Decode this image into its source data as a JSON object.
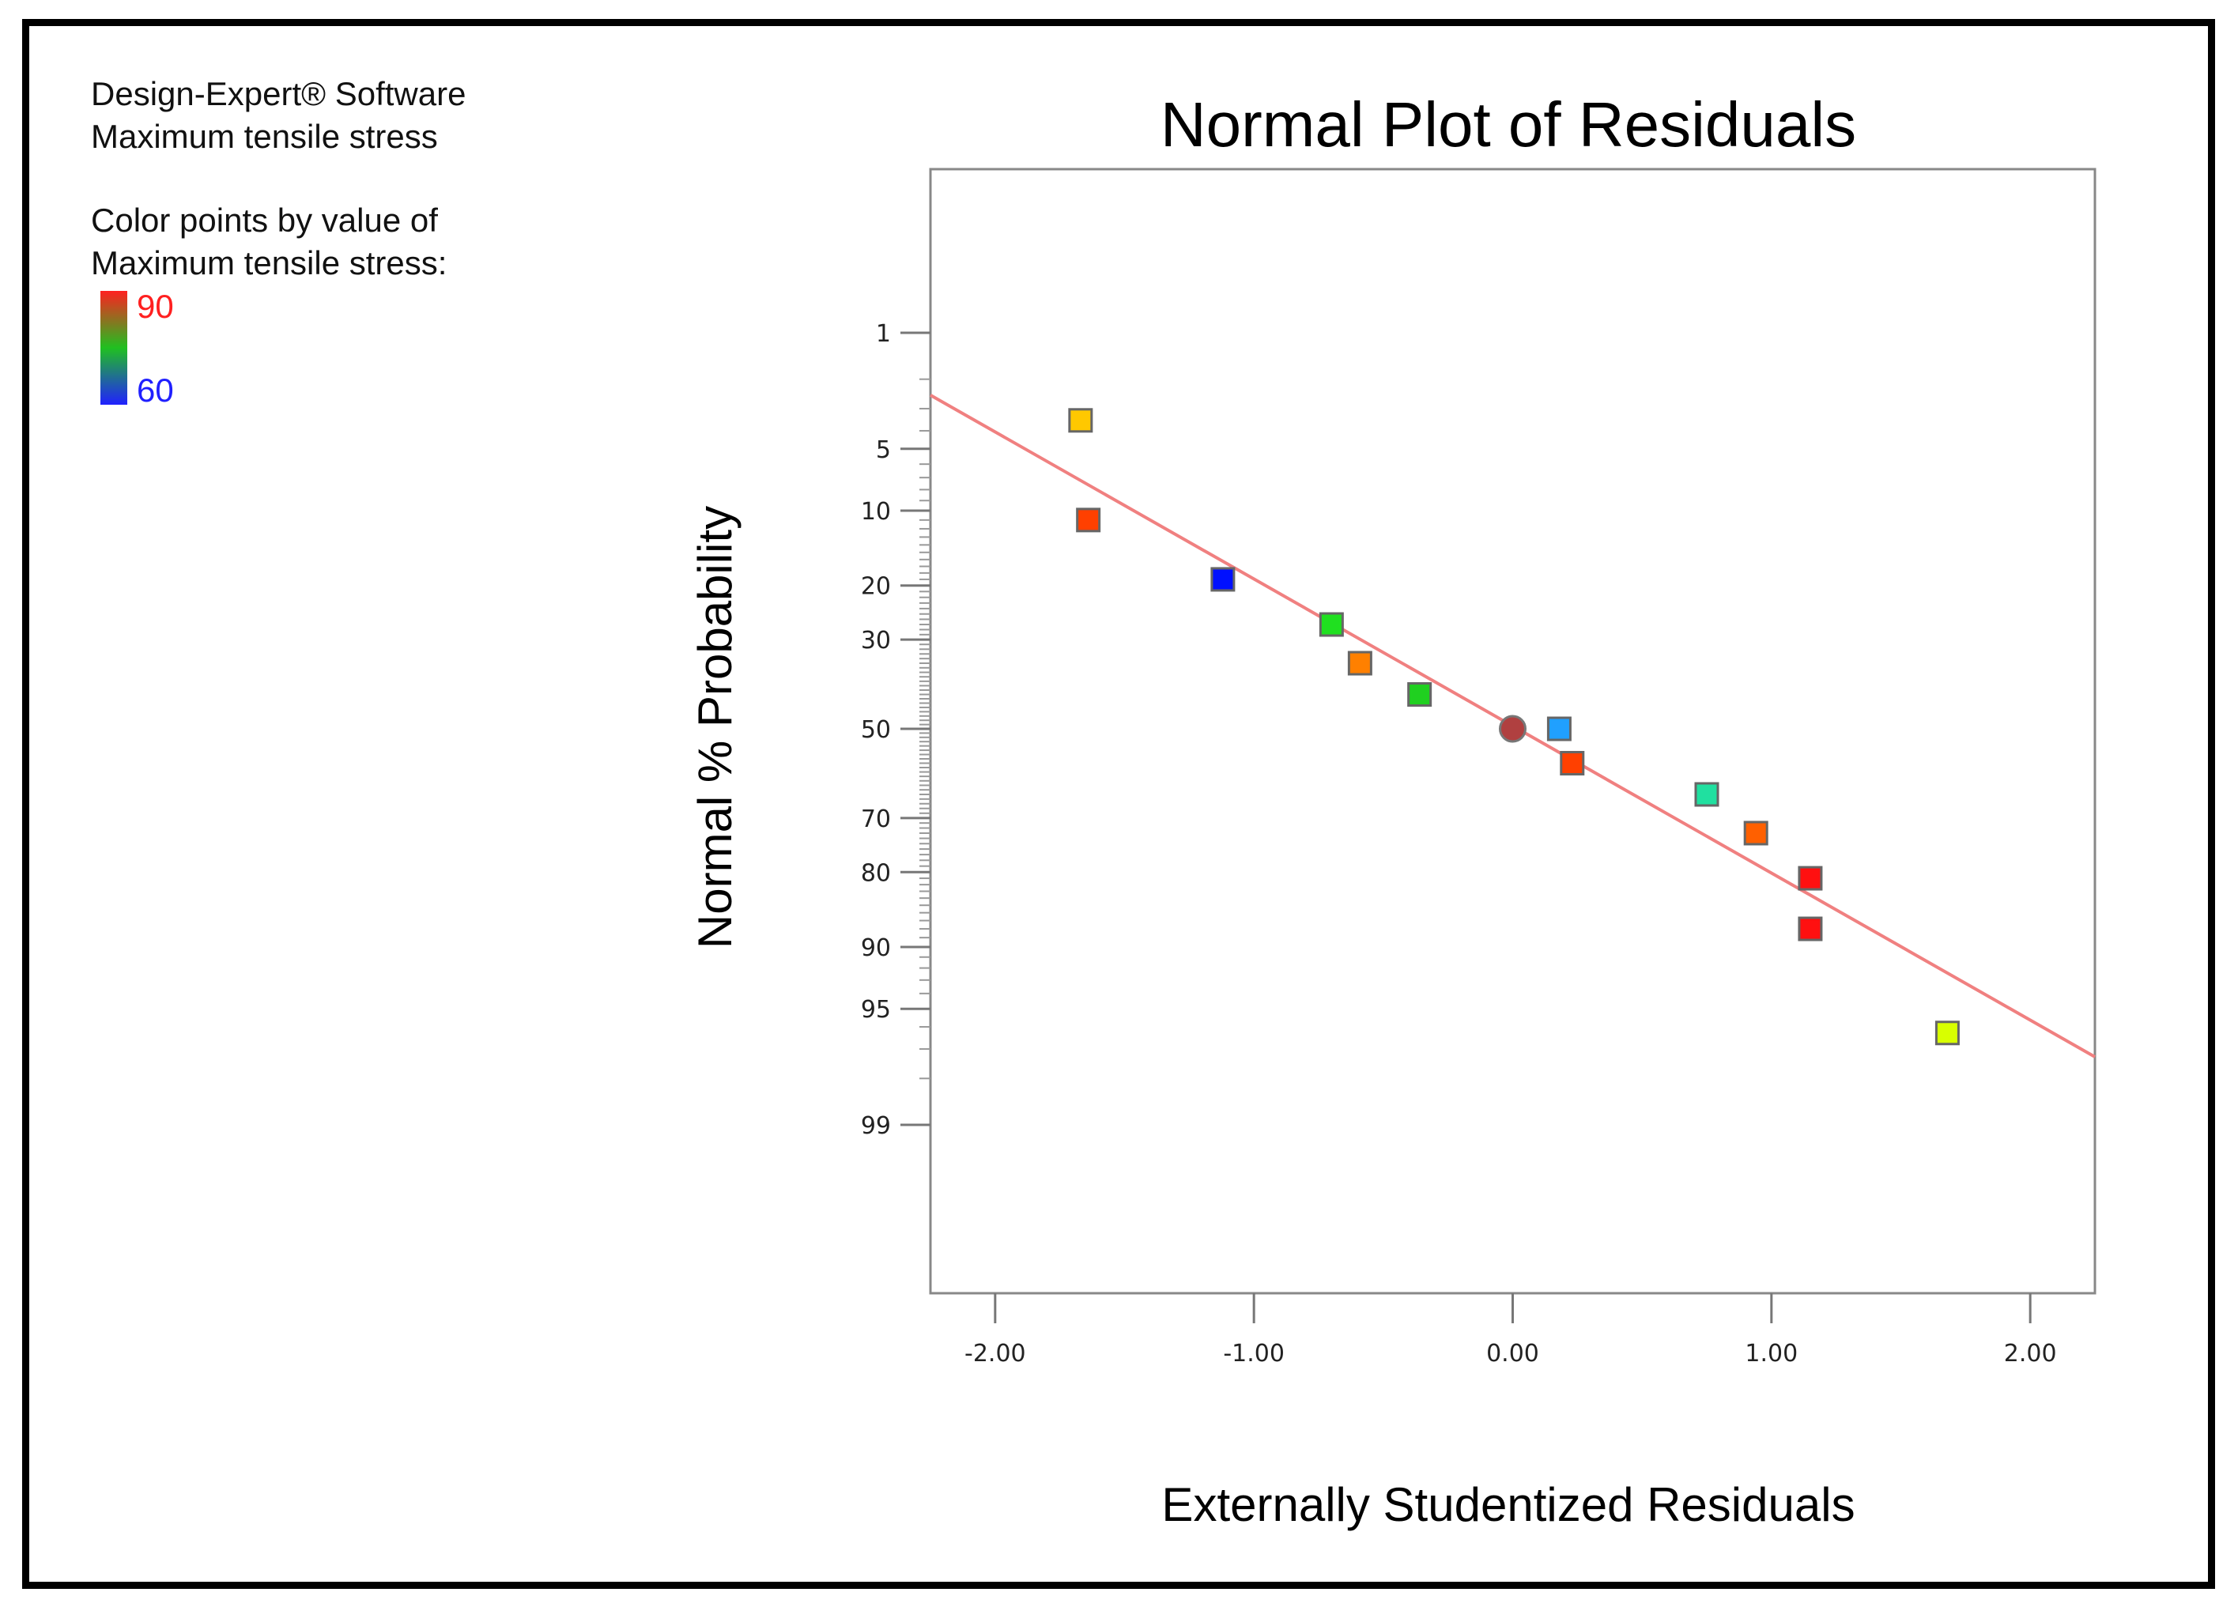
{
  "software": {
    "title": "Design-Expert® Software",
    "response": "Maximum tensile stress"
  },
  "legend": {
    "caption_line1": "Color points by value of",
    "caption_line2": "Maximum tensile stress:",
    "max_label": "90",
    "min_label": "60",
    "max_color": "#ff2020",
    "mid_color": "#20c020",
    "min_color": "#2020ff"
  },
  "chart_data": {
    "type": "scatter",
    "title": "Normal Plot of Residuals",
    "xlabel": "Externally Studentized Residuals",
    "ylabel": "Normal % Probability",
    "xlim": [
      -2.25,
      2.25
    ],
    "y_scale": "normal-probability",
    "x_ticks": [
      -2,
      -1,
      0,
      1,
      2
    ],
    "x_tick_labels": [
      "-2.00",
      "-1.00",
      "0.00",
      "1.00",
      "2.00"
    ],
    "y_ticks": [
      1,
      5,
      10,
      20,
      30,
      50,
      70,
      80,
      90,
      95,
      99
    ],
    "y_tick_labels": [
      "1",
      "5",
      "10",
      "20",
      "30",
      "50",
      "70",
      "80",
      "90",
      "95",
      "99"
    ],
    "grid": false,
    "fit_line": {
      "color": "#f08080",
      "x": [
        -2.25,
        2.25
      ],
      "y": [
        2.5,
        97.3
      ]
    },
    "points": [
      {
        "x": -1.67,
        "y": 3.5,
        "color": "#ffc800",
        "shape": "square"
      },
      {
        "x": -1.64,
        "y": 11,
        "color": "#ff4000",
        "shape": "square"
      },
      {
        "x": -1.12,
        "y": 19,
        "color": "#0010ff",
        "shape": "square"
      },
      {
        "x": -0.7,
        "y": 27,
        "color": "#20e020",
        "shape": "square"
      },
      {
        "x": -0.59,
        "y": 35,
        "color": "#ff8000",
        "shape": "square"
      },
      {
        "x": -0.36,
        "y": 42,
        "color": "#20d020",
        "shape": "square"
      },
      {
        "x": 0.0,
        "y": 50,
        "color": "#b04040",
        "shape": "circle"
      },
      {
        "x": 0.18,
        "y": 50,
        "color": "#20a0ff",
        "shape": "square"
      },
      {
        "x": 0.23,
        "y": 58,
        "color": "#ff4000",
        "shape": "square"
      },
      {
        "x": 0.75,
        "y": 65,
        "color": "#20e0a0",
        "shape": "square"
      },
      {
        "x": 0.94,
        "y": 73,
        "color": "#ff6000",
        "shape": "square"
      },
      {
        "x": 1.15,
        "y": 81,
        "color": "#ff1010",
        "shape": "square"
      },
      {
        "x": 1.15,
        "y": 88,
        "color": "#ff1010",
        "shape": "square"
      },
      {
        "x": 1.68,
        "y": 96.3,
        "color": "#d8ff00",
        "shape": "square"
      }
    ]
  }
}
